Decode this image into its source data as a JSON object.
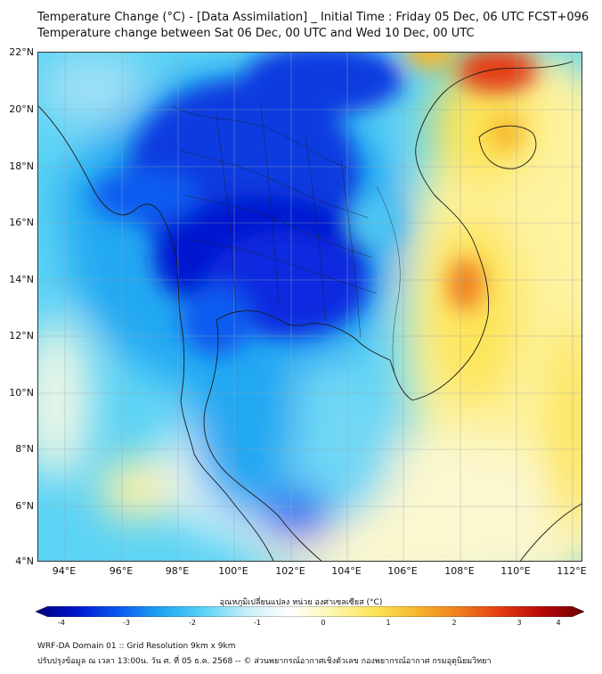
{
  "header": {
    "title_line1": "Temperature Change (°C) - [Data Assimilation] _ Initial Time : Friday 05 Dec, 06 UTC FCST+096",
    "title_line2": "Temperature change between Sat 06 Dec, 00 UTC and Wed 10 Dec, 00 UTC"
  },
  "map": {
    "lat_labels": [
      "22°N",
      "20°N",
      "18°N",
      "16°N",
      "14°N",
      "12°N",
      "10°N",
      "8°N",
      "6°N",
      "4°N"
    ],
    "lon_labels": [
      "94°E",
      "96°E",
      "98°E",
      "100°E",
      "102°E",
      "104°E",
      "106°E",
      "108°E",
      "110°E",
      "112°E"
    ],
    "grid_lines": true
  },
  "colorbar": {
    "title": "อุณหภูมิเปลี่ยนแปลง หน่วย องศาเซลเซียส (°C)",
    "ticks": [
      "-4",
      "-3",
      "-2",
      "-1",
      "0",
      "1",
      "2",
      "3",
      "4"
    ],
    "colors": [
      "#00007a",
      "#0018d0",
      "#0a5cf0",
      "#21a7f2",
      "#5cd3f5",
      "#c7eef8",
      "#ffffff",
      "#fdf7b0",
      "#fde55a",
      "#f7b82e",
      "#f08020",
      "#e43d12",
      "#b80808",
      "#6e0000"
    ]
  },
  "footer": {
    "line1": "WRF-DA Domain 01 :: Grid Resolution 9km x 9km",
    "line2": "ปรับปรุงข้อมูล ณ เวลา 13:00น. วัน ศ. ที่ 05 ธ.ค. 2568 -- © ส่วนพยากรณ์อากาศเชิงตัวเลข กองพยากรณ์อากาศ กรมอุตุนิยมวิทยา"
  }
}
